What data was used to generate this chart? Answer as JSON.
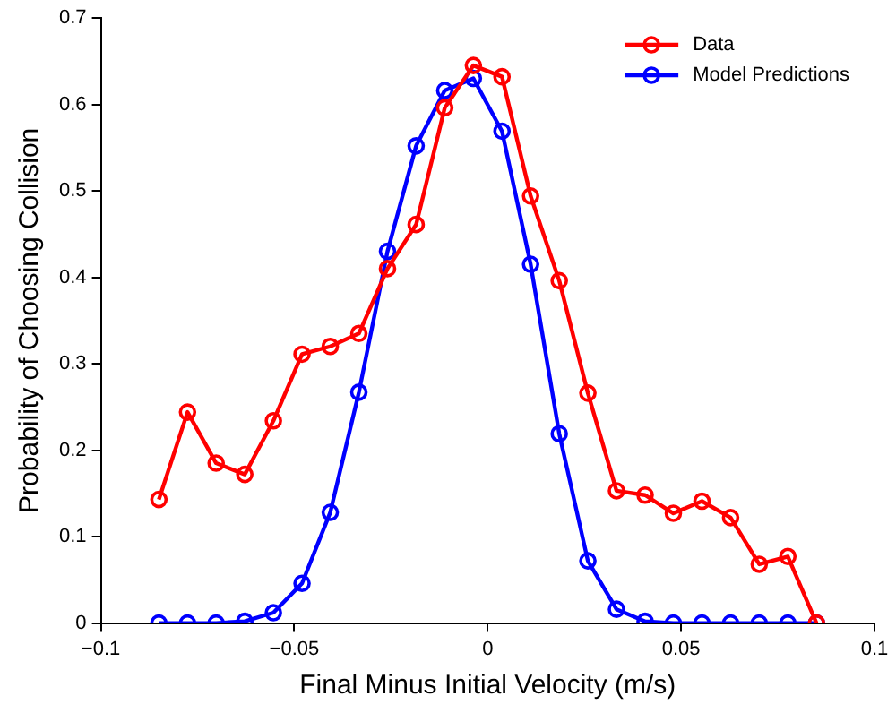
{
  "chart_data": {
    "type": "line",
    "xlabel": "Final Minus Initial Velocity (m/s)",
    "ylabel": "Probability of Choosing Collision",
    "x": [
      -0.085,
      -0.0776,
      -0.0702,
      -0.0628,
      -0.0554,
      -0.048,
      -0.0407,
      -0.0333,
      -0.0259,
      -0.0185,
      -0.0111,
      -0.0037,
      0.0037,
      0.0111,
      0.0185,
      0.0259,
      0.0333,
      0.0407,
      0.048,
      0.0554,
      0.0628,
      0.0702,
      0.0776,
      0.085
    ],
    "series": [
      {
        "name": "Data",
        "color": "#ff0000",
        "values": [
          0.143,
          0.244,
          0.185,
          0.172,
          0.234,
          0.311,
          0.32,
          0.335,
          0.41,
          0.461,
          0.596,
          0.645,
          0.632,
          0.494,
          0.396,
          0.266,
          0.153,
          0.148,
          0.127,
          0.141,
          0.122,
          0.068,
          0.077,
          0.0
        ]
      },
      {
        "name": "Model Predictions",
        "color": "#0000ff",
        "values": [
          0.0,
          0.0,
          0.0,
          0.002,
          0.012,
          0.046,
          0.128,
          0.267,
          0.43,
          0.552,
          0.616,
          0.63,
          0.569,
          0.415,
          0.219,
          0.072,
          0.016,
          0.002,
          0.0,
          0.0,
          0.0,
          0.0,
          0.0,
          0.0
        ]
      }
    ],
    "xlim": [
      -0.1,
      0.1
    ],
    "xticks": [
      {
        "value": -0.1,
        "label": "−0.1"
      },
      {
        "value": -0.05,
        "label": "−0.05"
      },
      0,
      0.05,
      0.1
    ],
    "ylim": [
      0,
      0.7
    ],
    "yticks": [
      0,
      0.1,
      0.2,
      0.3,
      0.4,
      0.5,
      0.6,
      0.7
    ],
    "grid": false,
    "legend": "top right",
    "marker": "circle",
    "line_style": "solid"
  }
}
